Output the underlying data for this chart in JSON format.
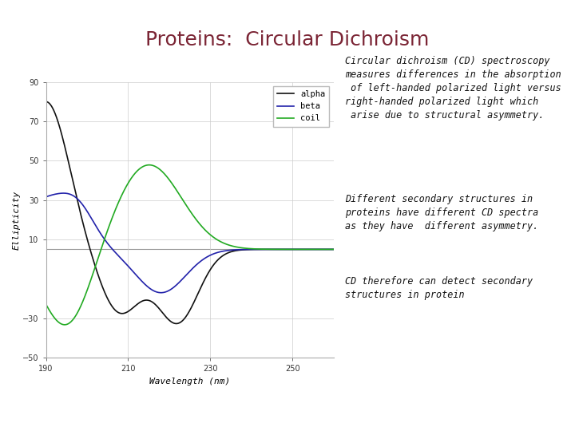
{
  "title": "Proteins:  Circular Dichroism",
  "title_color": "#7B2535",
  "title_fontsize": 18,
  "xlabel": "Wavelength (nm)",
  "ylabel": "Ellipticity",
  "xlim": [
    190,
    260
  ],
  "ylim": [
    -50,
    90
  ],
  "yticks": [
    -50,
    -30,
    10,
    30,
    50,
    70,
    90
  ],
  "xticks": [
    190,
    210,
    230,
    250
  ],
  "alpha_color": "#111111",
  "beta_color": "#2222AA",
  "coil_color": "#22AA22",
  "legend_labels": [
    "alpha",
    "beta",
    "coil"
  ],
  "bg_color": "#FFFFFF",
  "text1": "Circular dichroism (CD) spectroscopy\nmeasures differences in the absorption\n of left-handed polarized light versus\nright-handed polarized light which\n arise due to structural asymmetry.",
  "text2": "Different secondary structures in\nproteins have different CD spectra\nas they have  different asymmetry.",
  "text3": "CD therefore can detect secondary\nstructures in protein",
  "text_fontsize": 8.5,
  "text_color": "#111111",
  "hline_y": 5,
  "hline_color": "#999999",
  "grid_color": "#CCCCCC"
}
